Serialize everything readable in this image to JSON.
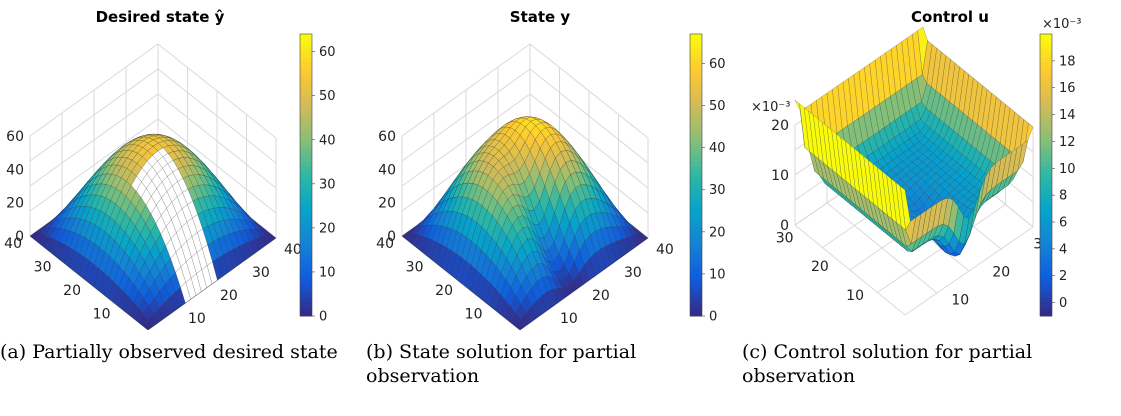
{
  "colors": {
    "parula": [
      "#352a87",
      "#0f5cdd",
      "#1481d6",
      "#06a4ca",
      "#2eb7a4",
      "#87bf77",
      "#d1bb59",
      "#fec832",
      "#f9fb0e"
    ],
    "unobserved_surface": "#ffffff",
    "side_walls": "#2b1f8f",
    "grid_lines": "#d9d9d9"
  },
  "chart_data": [
    {
      "panel": "a",
      "type": "surface3d",
      "title": "Desired state ŷ",
      "xlim": [
        0,
        40
      ],
      "ylim": [
        0,
        40
      ],
      "zlim": [
        0,
        60
      ],
      "x_ticks": [
        "0",
        "10",
        "20",
        "30",
        "40"
      ],
      "y_ticks": [
        "0",
        "10",
        "20",
        "30",
        "40"
      ],
      "z_ticks": [
        "0",
        "20",
        "40",
        "60"
      ],
      "z_tick_values": [
        0,
        20,
        40,
        60
      ],
      "colorbar": {
        "min": 0,
        "max": 64,
        "ticks": [
          "0",
          "10",
          "20",
          "30",
          "40",
          "50",
          "60"
        ],
        "tick_values": [
          0,
          10,
          20,
          30,
          40,
          50,
          60
        ],
        "exponent": ""
      },
      "surface": "paraboloid, peak ~64 at center, 0 on boundary",
      "peak": 64,
      "unobserved_band": "white"
    },
    {
      "panel": "b",
      "type": "surface3d",
      "title": "State y",
      "xlim": [
        0,
        40
      ],
      "ylim": [
        0,
        40
      ],
      "zlim": [
        0,
        60
      ],
      "x_ticks": [
        "0",
        "10",
        "20",
        "30",
        "40"
      ],
      "y_ticks": [
        "0",
        "10",
        "20",
        "30",
        "40"
      ],
      "z_ticks": [
        "0",
        "20",
        "40",
        "60"
      ],
      "z_tick_values": [
        0,
        20,
        40,
        60
      ],
      "colorbar": {
        "min": 0,
        "max": 67,
        "ticks": [
          "0",
          "10",
          "20",
          "30",
          "40",
          "50",
          "60"
        ],
        "tick_values": [
          0,
          10,
          20,
          30,
          40,
          50,
          60
        ],
        "exponent": ""
      },
      "surface": "paraboloid with trough along unobserved band",
      "peak": 67
    },
    {
      "panel": "c",
      "type": "surface3d",
      "title": "Control u",
      "xlim": [
        0,
        32
      ],
      "ylim": [
        0,
        32
      ],
      "zlim": [
        0,
        20
      ],
      "x_ticks": [
        "10",
        "20",
        "30"
      ],
      "y_ticks": [
        "10",
        "20",
        "30"
      ],
      "z_ticks": [
        "0",
        "10",
        "20"
      ],
      "z_tick_values": [
        0,
        10,
        20
      ],
      "z_exponent": "×10⁻³",
      "colorbar": {
        "min": -1,
        "max": 20,
        "ticks": [
          "0",
          "2",
          "4",
          "6",
          "8",
          "10",
          "12",
          "14",
          "16",
          "18"
        ],
        "tick_values": [
          0,
          2,
          4,
          6,
          8,
          10,
          12,
          14,
          16,
          18
        ],
        "exponent": "×10⁻³"
      },
      "surface": "raised edges ~0.01–0.02, interior ~0.005, dip along unobserved band"
    }
  ],
  "captions": [
    {
      "label": "(a)",
      "text": "Partially observed desired state"
    },
    {
      "label": "(b)",
      "text": "State solution for partial observation"
    },
    {
      "label": "(c)",
      "text": "Control solution for partial observation"
    }
  ]
}
